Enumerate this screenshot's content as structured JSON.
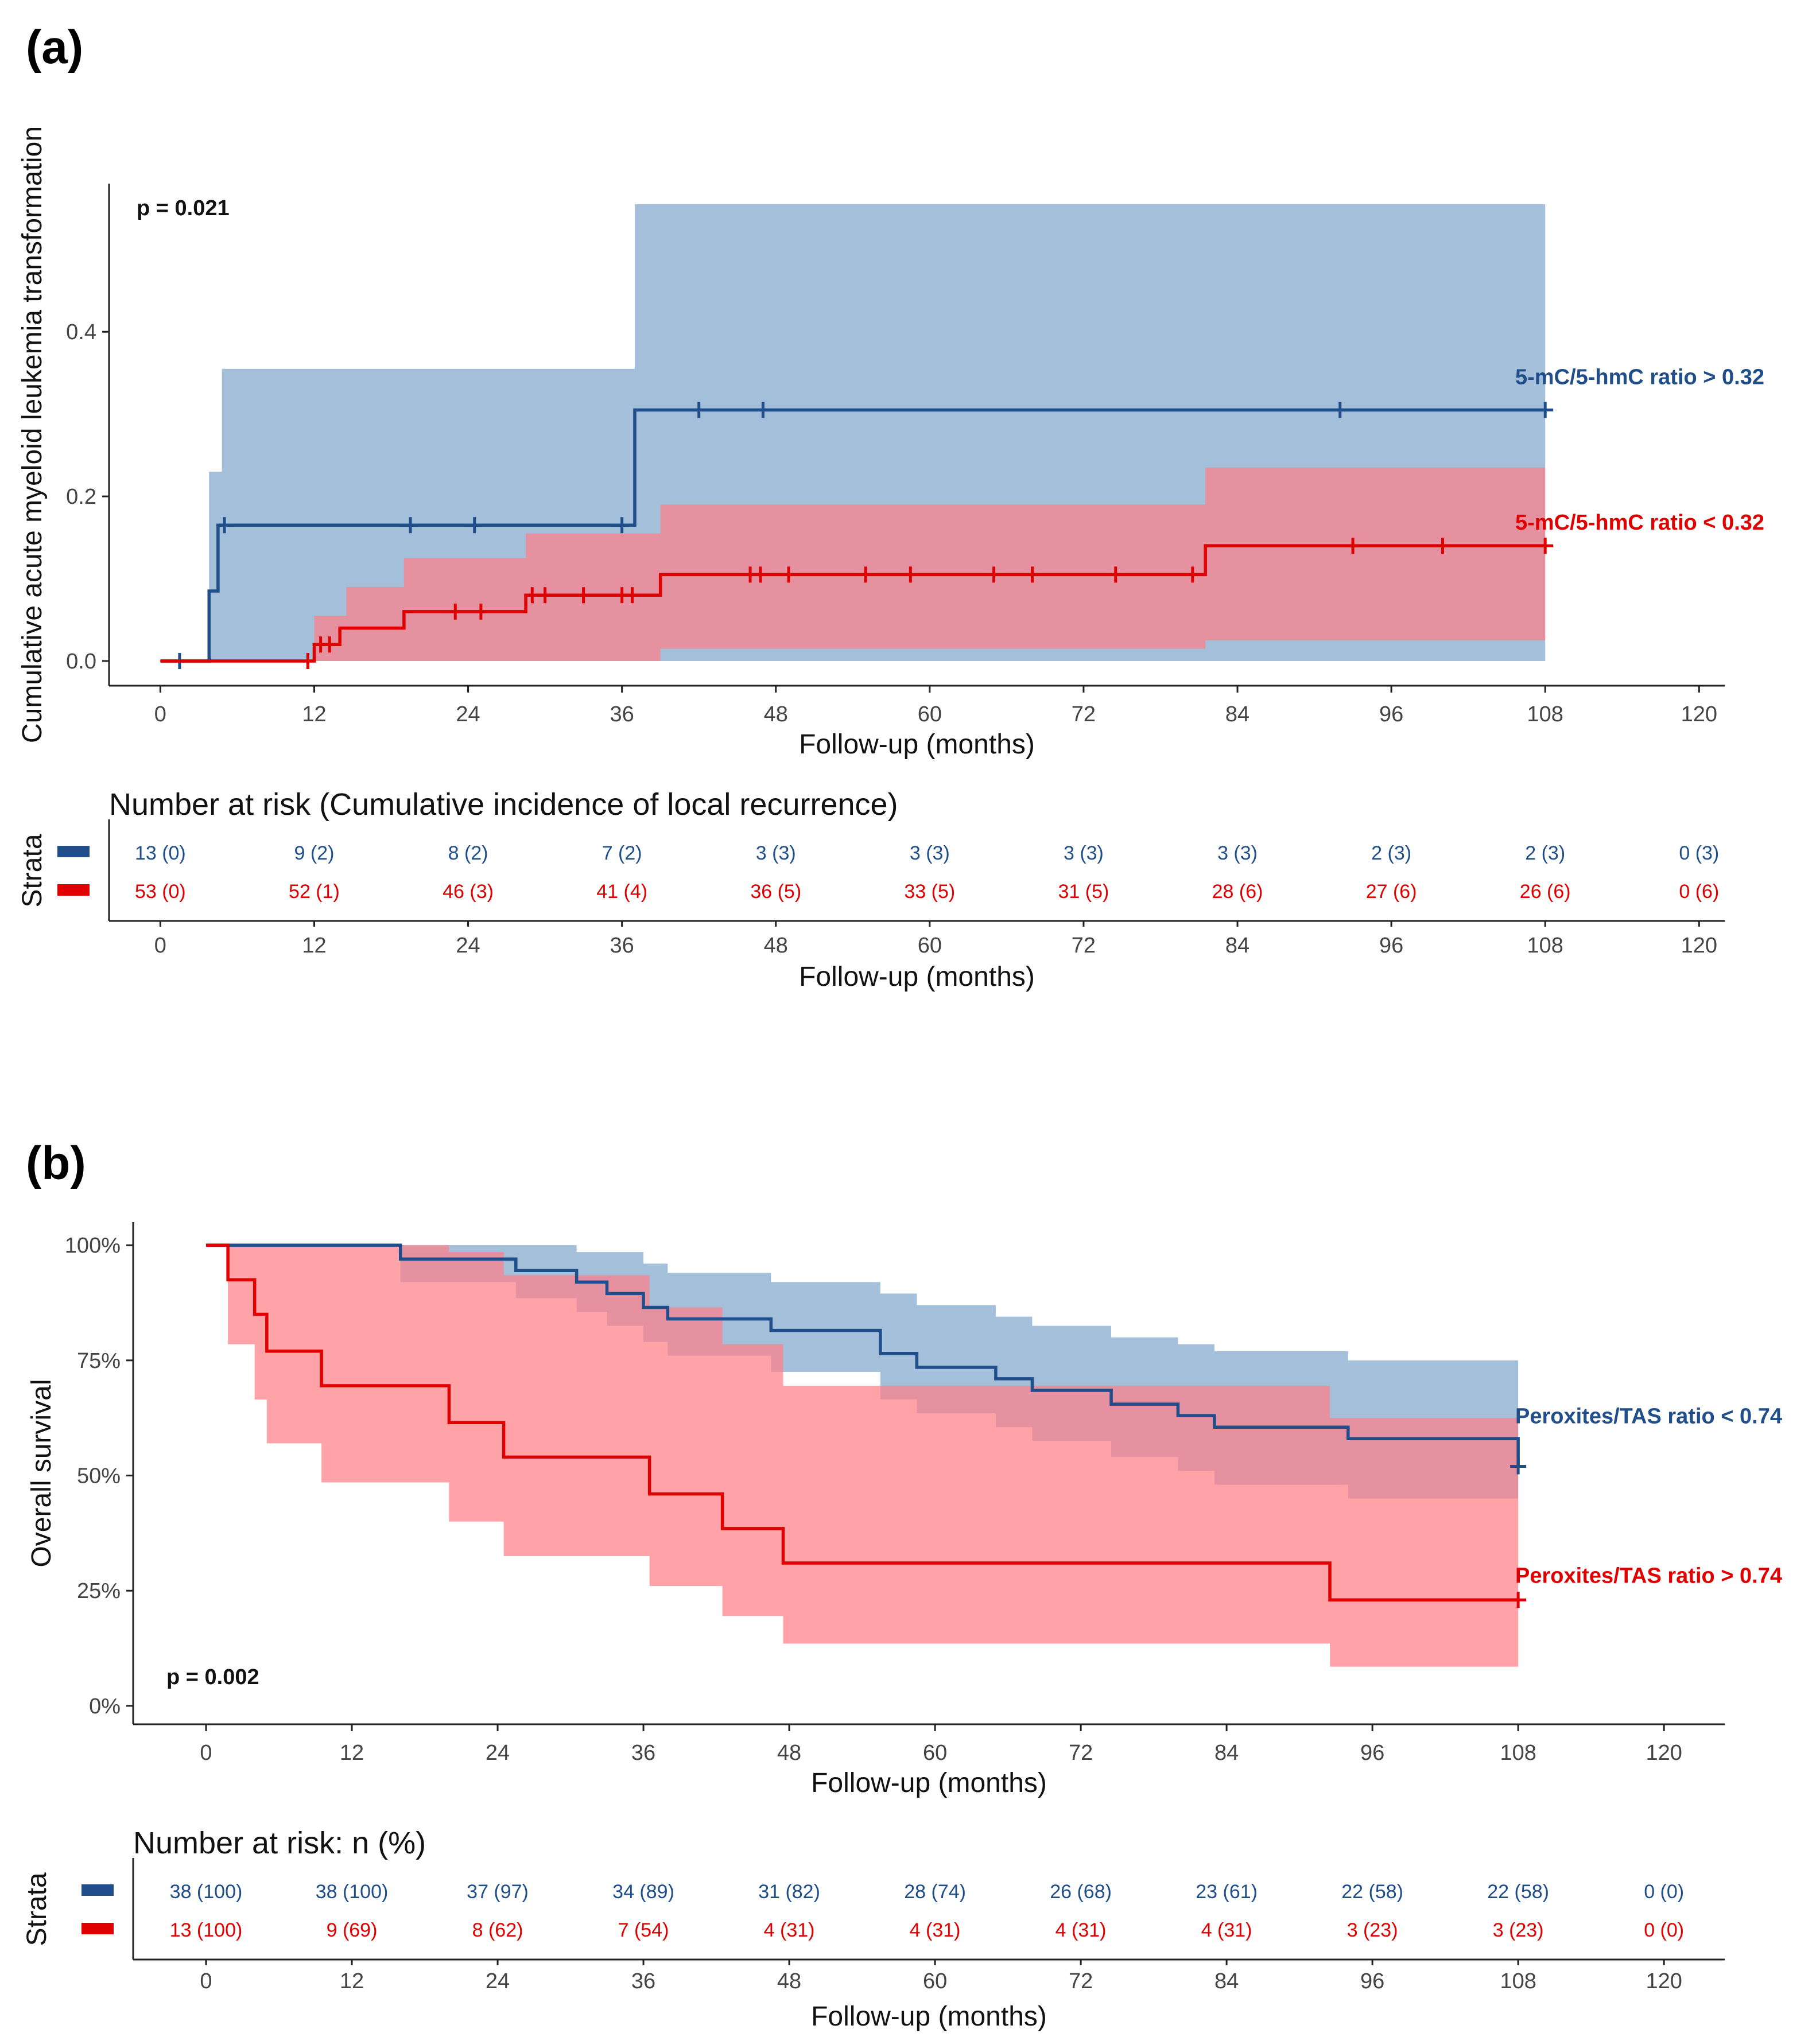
{
  "figure": {
    "colors": {
      "blue": "#1f4e8a",
      "red": "#e00000",
      "blue_band": "#7fa6cc",
      "red_band": "#ff8088"
    }
  },
  "chart_data": [
    {
      "panel_label": "(a)",
      "type": "line",
      "style": "step",
      "title": "",
      "xlabel": "Follow-up (months)",
      "ylabel": "Cumulative acute myeloid leukemia transformation",
      "xlim": [
        -4,
        122
      ],
      "ylim": [
        -0.03,
        0.58
      ],
      "x_ticks": [
        0,
        12,
        24,
        36,
        48,
        60,
        72,
        84,
        96,
        108,
        120
      ],
      "y_ticks": [
        0.0,
        0.2,
        0.4
      ],
      "y_tick_labels": [
        "0.0",
        "0.2",
        "0.4"
      ],
      "p_value": "p = 0.021",
      "series": [
        {
          "name": "5-mC/5-hmC ratio > 0.32",
          "color": "#1f4e8a",
          "band_color": "#7fa6cc",
          "steps": [
            [
              0,
              0.0
            ],
            [
              3.8,
              0.085
            ],
            [
              4.5,
              0.165
            ],
            [
              37,
              0.305
            ],
            [
              108,
              0.305
            ]
          ],
          "ci": [
            [
              0,
              0.0,
              0.0
            ],
            [
              3.8,
              0.0,
              0.23
            ],
            [
              4.8,
              0.0,
              0.355
            ],
            [
              37,
              0.0,
              0.555
            ],
            [
              108,
              0.0,
              0.555
            ]
          ],
          "censor": [
            [
              1.5,
              0.0
            ],
            [
              5,
              0.165
            ],
            [
              19.5,
              0.165
            ],
            [
              24.5,
              0.165
            ],
            [
              36,
              0.165
            ],
            [
              42,
              0.305
            ],
            [
              47,
              0.305
            ],
            [
              92,
              0.305
            ],
            [
              108,
              0.305
            ]
          ]
        },
        {
          "name": "5-mC/5-hmC ratio < 0.32",
          "color": "#e00000",
          "band_color": "#ff8088",
          "steps": [
            [
              0,
              0.0
            ],
            [
              12,
              0.02
            ],
            [
              14,
              0.04
            ],
            [
              19,
              0.06
            ],
            [
              28.5,
              0.08
            ],
            [
              39,
              0.105
            ],
            [
              81.5,
              0.14
            ],
            [
              108,
              0.14
            ]
          ],
          "ci": [
            [
              0,
              0.0,
              0.0
            ],
            [
              12,
              0.0,
              0.055
            ],
            [
              14.5,
              0.0,
              0.09
            ],
            [
              19,
              0.0,
              0.125
            ],
            [
              28.5,
              0.0,
              0.155
            ],
            [
              39,
              0.015,
              0.19
            ],
            [
              81.5,
              0.025,
              0.235
            ],
            [
              108,
              0.025,
              0.235
            ]
          ],
          "censor": [
            [
              11.5,
              0.0
            ],
            [
              12.5,
              0.02
            ],
            [
              13.2,
              0.02
            ],
            [
              23,
              0.06
            ],
            [
              25,
              0.06
            ],
            [
              29,
              0.08
            ],
            [
              30,
              0.08
            ],
            [
              33,
              0.08
            ],
            [
              36,
              0.08
            ],
            [
              36.8,
              0.08
            ],
            [
              46,
              0.105
            ],
            [
              46.8,
              0.105
            ],
            [
              49,
              0.105
            ],
            [
              55,
              0.105
            ],
            [
              58.5,
              0.105
            ],
            [
              65,
              0.105
            ],
            [
              68,
              0.105
            ],
            [
              74.5,
              0.105
            ],
            [
              80.5,
              0.105
            ],
            [
              93,
              0.14
            ],
            [
              100,
              0.14
            ],
            [
              108,
              0.14
            ]
          ]
        }
      ],
      "risk_table": {
        "title": "Number at risk (Cumulative incidence of local recurrence)",
        "strata_label": "Strata",
        "xlabel": "Follow-up (months)",
        "rows": [
          {
            "color": "#1f4e8a",
            "cells": [
              "13 (0)",
              "9 (2)",
              "8 (2)",
              "7 (2)",
              "3 (3)",
              "3 (3)",
              "3 (3)",
              "3 (3)",
              "2 (3)",
              "2 (3)",
              "0 (3)"
            ]
          },
          {
            "color": "#e00000",
            "cells": [
              "53 (0)",
              "52 (1)",
              "46 (3)",
              "41 (4)",
              "36 (5)",
              "33 (5)",
              "31 (5)",
              "28 (6)",
              "27 (6)",
              "26 (6)",
              "0 (6)"
            ]
          }
        ]
      }
    },
    {
      "panel_label": "(b)",
      "type": "line",
      "style": "step",
      "title": "",
      "xlabel": "Follow-up (months)",
      "ylabel": "Overall survival",
      "xlim": [
        -6,
        125
      ],
      "ylim": [
        -0.04,
        1.05
      ],
      "x_ticks": [
        0,
        12,
        24,
        36,
        48,
        60,
        72,
        84,
        96,
        108,
        120
      ],
      "y_ticks": [
        0,
        0.25,
        0.5,
        0.75,
        1.0
      ],
      "y_tick_labels": [
        "0%",
        "25%",
        "50%",
        "75%",
        "100%"
      ],
      "p_value": "p = 0.002",
      "series": [
        {
          "name": "Peroxites/TAS ratio < 0.74",
          "color": "#1f4e8a",
          "band_color": "#7fa6cc",
          "steps": [
            [
              0,
              1.0
            ],
            [
              16,
              0.97
            ],
            [
              25.5,
              0.945
            ],
            [
              30.5,
              0.92
            ],
            [
              33,
              0.895
            ],
            [
              36,
              0.865
            ],
            [
              38,
              0.84
            ],
            [
              46.5,
              0.815
            ],
            [
              55.5,
              0.765
            ],
            [
              58.5,
              0.735
            ],
            [
              65,
              0.71
            ],
            [
              68,
              0.685
            ],
            [
              74.5,
              0.655
            ],
            [
              80,
              0.63
            ],
            [
              83,
              0.605
            ],
            [
              94,
              0.58
            ],
            [
              108,
              0.52
            ]
          ],
          "ci": [
            [
              0,
              1.0,
              1.0
            ],
            [
              16,
              0.92,
              1.0
            ],
            [
              20,
              0.92,
              1.0
            ],
            [
              25.5,
              0.885,
              1.0
            ],
            [
              30.5,
              0.855,
              0.985
            ],
            [
              33,
              0.825,
              0.985
            ],
            [
              36,
              0.79,
              0.96
            ],
            [
              38,
              0.76,
              0.94
            ],
            [
              46.5,
              0.725,
              0.92
            ],
            [
              55.5,
              0.665,
              0.895
            ],
            [
              58.5,
              0.635,
              0.87
            ],
            [
              65,
              0.605,
              0.845
            ],
            [
              68,
              0.575,
              0.825
            ],
            [
              74.5,
              0.54,
              0.8
            ],
            [
              80,
              0.51,
              0.785
            ],
            [
              83,
              0.48,
              0.77
            ],
            [
              94,
              0.45,
              0.75
            ],
            [
              108,
              0.45,
              0.75
            ]
          ],
          "censor": [
            [
              108,
              0.52
            ]
          ]
        },
        {
          "name": "Peroxites/TAS ratio > 0.74",
          "color": "#e00000",
          "band_color": "#ff8088",
          "steps": [
            [
              0,
              1.0
            ],
            [
              1.8,
              0.925
            ],
            [
              4,
              0.85
            ],
            [
              5,
              0.77
            ],
            [
              9.5,
              0.695
            ],
            [
              20,
              0.615
            ],
            [
              24.5,
              0.54
            ],
            [
              36.5,
              0.46
            ],
            [
              42.5,
              0.385
            ],
            [
              47.5,
              0.31
            ],
            [
              92.5,
              0.23
            ],
            [
              108,
              0.23
            ]
          ],
          "ci": [
            [
              0,
              1.0,
              1.0
            ],
            [
              1.8,
              0.785,
              1.0
            ],
            [
              4,
              0.665,
              1.0
            ],
            [
              5,
              0.57,
              1.0
            ],
            [
              9.5,
              0.485,
              1.0
            ],
            [
              20,
              0.4,
              0.985
            ],
            [
              24.5,
              0.325,
              0.935
            ],
            [
              36.5,
              0.26,
              0.865
            ],
            [
              42.5,
              0.195,
              0.785
            ],
            [
              47.5,
              0.135,
              0.695
            ],
            [
              92.5,
              0.085,
              0.625
            ],
            [
              108,
              0.085,
              0.625
            ]
          ],
          "censor": [
            [
              108,
              0.23
            ]
          ]
        }
      ],
      "risk_table": {
        "title": "Number at risk: n (%)",
        "strata_label": "Strata",
        "xlabel": "Follow-up (months)",
        "rows": [
          {
            "color": "#1f4e8a",
            "cells": [
              "38 (100)",
              "38 (100)",
              "37 (97)",
              "34 (89)",
              "31 (82)",
              "28 (74)",
              "26 (68)",
              "23 (61)",
              "22 (58)",
              "22 (58)",
              "0 (0)"
            ]
          },
          {
            "color": "#e00000",
            "cells": [
              "13 (100)",
              "9 (69)",
              "8 (62)",
              "7 (54)",
              "4 (31)",
              "4 (31)",
              "4 (31)",
              "4 (31)",
              "3 (23)",
              "3 (23)",
              "0 (0)"
            ]
          }
        ]
      }
    }
  ]
}
